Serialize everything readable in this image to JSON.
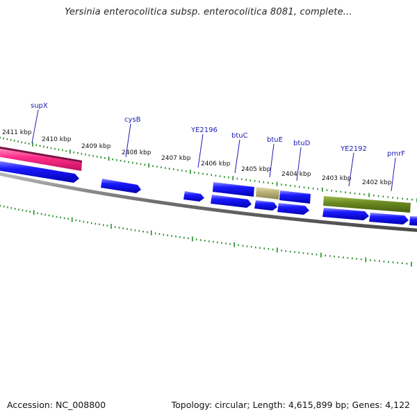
{
  "title": "Yersinia enterocolitica subsp. enterocolitica 8081, complete...",
  "accession": "Accession: NC_008800",
  "summary": "Topology: circular; Length: 4,615,899 bp; Genes: 4,122",
  "colors": {
    "cds": "#1010e6",
    "trna": "#ff2d8a",
    "feature_tan": "#bdb47a",
    "feature_olive": "#6b8a22",
    "backbone": "#7a7a7a",
    "ticks": "#1f8a1f",
    "label": "#1a1ab0"
  },
  "ruler": {
    "labels": [
      "2411 kbp",
      "2410 kbp",
      "2409 kbp",
      "2408 kbp",
      "2407 kbp",
      "2406 kbp",
      "2405 kbp",
      "2404 kbp",
      "2403 kbp",
      "2402 kbp"
    ]
  },
  "gene_labels": [
    "supX",
    "cysB",
    "YE2196",
    "btuC",
    "btuE",
    "btuD",
    "YE2192",
    "pmrF"
  ]
}
